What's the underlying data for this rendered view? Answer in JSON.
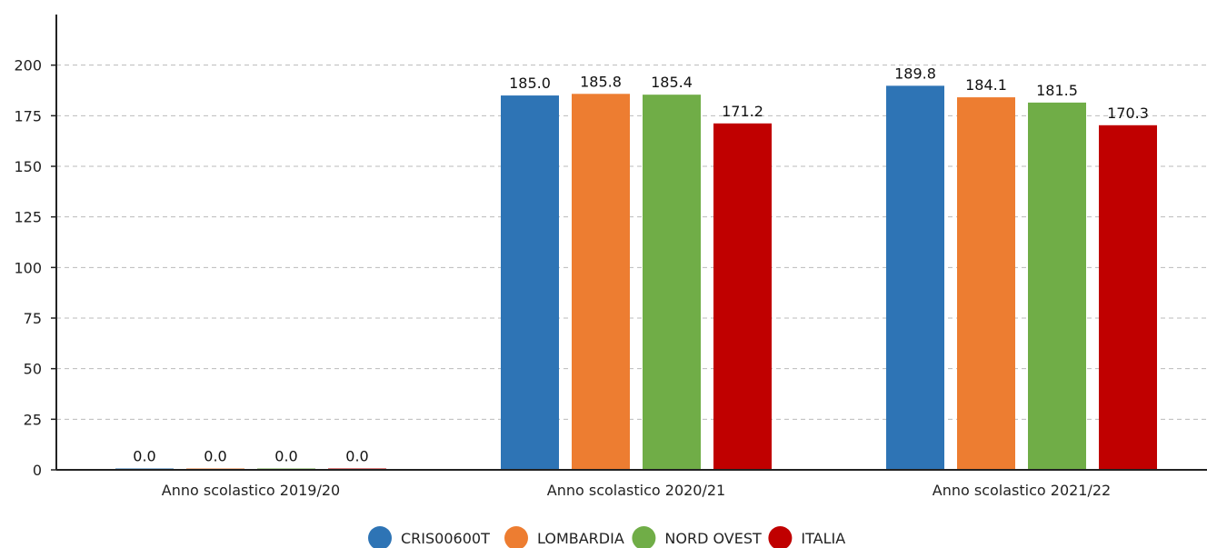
{
  "chart_data": {
    "type": "bar",
    "categories": [
      "Anno scolastico 2019/20",
      "Anno scolastico 2020/21",
      "Anno scolastico 2021/22"
    ],
    "series": [
      {
        "name": "CRIS00600T",
        "color": "#2e74b5",
        "values": [
          0.0,
          185.0,
          189.8
        ]
      },
      {
        "name": "LOMBARDIA",
        "color": "#ed7d31",
        "values": [
          0.0,
          185.8,
          184.1
        ]
      },
      {
        "name": "NORD OVEST",
        "color": "#70ad47",
        "values": [
          0.0,
          185.4,
          181.5
        ]
      },
      {
        "name": "ITALIA",
        "color": "#c00000",
        "values": [
          0.0,
          171.2,
          170.3
        ]
      }
    ],
    "yticks": [
      "0",
      "25",
      "50",
      "75",
      "100",
      "125",
      "150",
      "175",
      "200"
    ],
    "ylim": [
      0,
      225
    ],
    "grid": true,
    "legend_position": "bottom"
  }
}
